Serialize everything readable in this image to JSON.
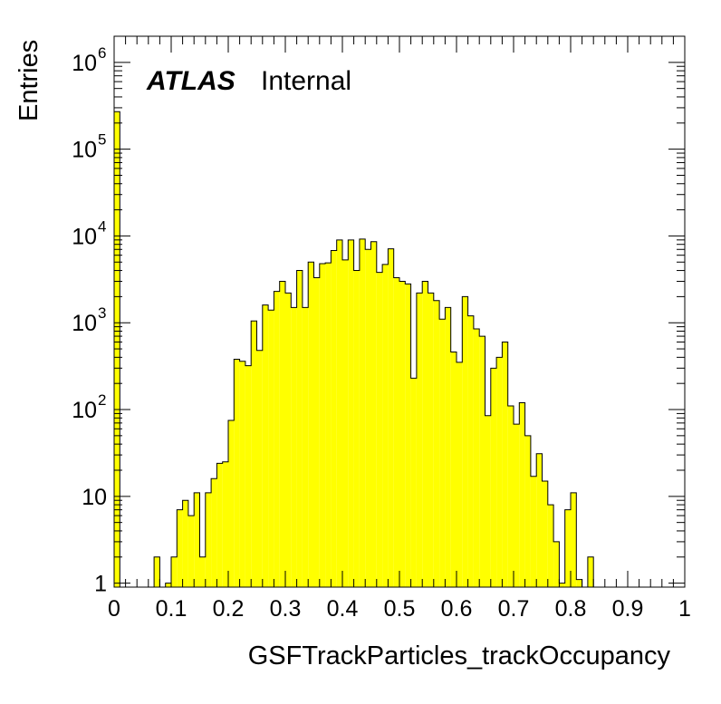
{
  "chart_data": {
    "type": "histogram",
    "title": "",
    "xlabel": "GSFTrackParticles_trackOccupancy",
    "ylabel": "Entries",
    "xlim": [
      0,
      1
    ],
    "ylim": [
      0.9,
      2000000
    ],
    "y_scale": "log",
    "grid": false,
    "bin_width": 0.01,
    "fill_color": "#ffff00",
    "line_color": "#000000",
    "label": {
      "experiment": "ATLAS",
      "status": "Internal"
    },
    "x_ticks": [
      {
        "value": 0,
        "label": "0"
      },
      {
        "value": 0.1,
        "label": "0.1"
      },
      {
        "value": 0.2,
        "label": "0.2"
      },
      {
        "value": 0.3,
        "label": "0.3"
      },
      {
        "value": 0.4,
        "label": "0.4"
      },
      {
        "value": 0.5,
        "label": "0.5"
      },
      {
        "value": 0.6,
        "label": "0.6"
      },
      {
        "value": 0.7,
        "label": "0.7"
      },
      {
        "value": 0.8,
        "label": "0.8"
      },
      {
        "value": 0.9,
        "label": "0.9"
      },
      {
        "value": 1,
        "label": "1"
      }
    ],
    "y_ticks": [
      {
        "value": 1,
        "base": "1",
        "exp": ""
      },
      {
        "value": 10,
        "base": "10",
        "exp": ""
      },
      {
        "value": 100,
        "base": "10",
        "exp": "2"
      },
      {
        "value": 1000,
        "base": "10",
        "exp": "3"
      },
      {
        "value": 10000,
        "base": "10",
        "exp": "4"
      },
      {
        "value": 100000,
        "base": "10",
        "exp": "5"
      },
      {
        "value": 1000000,
        "base": "10",
        "exp": "6"
      }
    ],
    "bin_values": [
      270000,
      0,
      0,
      0,
      0,
      0,
      0,
      2,
      0,
      1,
      2,
      7,
      9,
      6,
      11,
      2,
      11,
      16,
      24,
      25,
      75,
      380,
      360,
      320,
      1050,
      480,
      1600,
      1400,
      2300,
      3000,
      2200,
      1500,
      4000,
      1500,
      5000,
      3300,
      4800,
      4900,
      6800,
      9000,
      5300,
      9000,
      4000,
      9200,
      7000,
      8600,
      3800,
      4700,
      7100,
      3300,
      3000,
      2800,
      230,
      2200,
      3000,
      2200,
      1800,
      1100,
      1500,
      460,
      350,
      2000,
      1200,
      850,
      700,
      85,
      300,
      400,
      600,
      110,
      68,
      120,
      50,
      17,
      31,
      15,
      8,
      3,
      1,
      7,
      11,
      1.1,
      0,
      2,
      0,
      0,
      0,
      0,
      0,
      0,
      0,
      0,
      0,
      0,
      0,
      0,
      0,
      0,
      0,
      0
    ]
  }
}
